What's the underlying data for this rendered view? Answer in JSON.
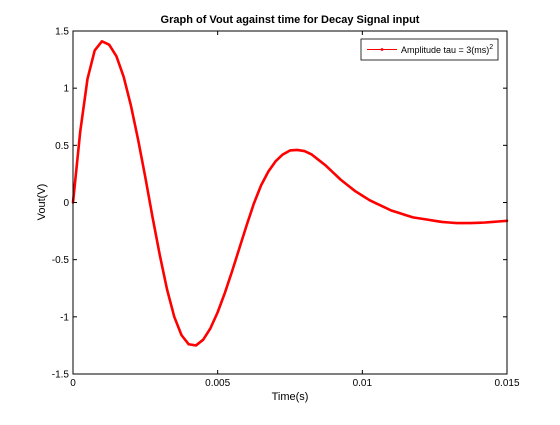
{
  "chart_data": {
    "type": "line",
    "title": "Graph of Vout against time for Decay Signal input",
    "xlabel": "Time(s)",
    "ylabel": "Vout(V)",
    "xlim": [
      0,
      0.015
    ],
    "ylim": [
      -1.5,
      1.5
    ],
    "xticks": [
      0,
      0.005,
      0.01,
      0.015
    ],
    "xtick_labels": [
      "0",
      "0.005",
      "0.01",
      "0.015"
    ],
    "yticks": [
      -1.5,
      -1,
      -0.5,
      0,
      0.5,
      1,
      1.5
    ],
    "ytick_labels": [
      "-1.5",
      "-1",
      "-0.5",
      "0",
      "0.5",
      "1",
      "1.5"
    ],
    "grid": false,
    "legend_position": "top-right",
    "series": [
      {
        "name": "Amplitude tau = 3(ms)",
        "name_base": "Amplitude tau = 3(ms)",
        "name_superscript": "2",
        "color": "#ff0000",
        "x": [
          0,
          0.00025,
          0.0005,
          0.00075,
          0.001,
          0.00125,
          0.0015,
          0.00175,
          0.002,
          0.00225,
          0.0025,
          0.00275,
          0.003,
          0.00325,
          0.0035,
          0.00375,
          0.004,
          0.00425,
          0.0045,
          0.00475,
          0.005,
          0.00525,
          0.0055,
          0.00575,
          0.006,
          0.00625,
          0.0065,
          0.00675,
          0.007,
          0.00725,
          0.0075,
          0.00775,
          0.008,
          0.00825,
          0.0085,
          0.00875,
          0.009,
          0.00925,
          0.0095,
          0.00975,
          0.01,
          0.01025,
          0.0105,
          0.01075,
          0.011,
          0.01125,
          0.0115,
          0.01175,
          0.012,
          0.01225,
          0.0125,
          0.01275,
          0.013,
          0.01325,
          0.0135,
          0.01375,
          0.014,
          0.01425,
          0.0145,
          0.01475,
          0.015
        ],
        "y": [
          0,
          0.62,
          1.08,
          1.33,
          1.41,
          1.38,
          1.28,
          1.1,
          0.85,
          0.55,
          0.22,
          -0.13,
          -0.46,
          -0.76,
          -1.0,
          -1.16,
          -1.24,
          -1.25,
          -1.2,
          -1.1,
          -0.96,
          -0.79,
          -0.6,
          -0.4,
          -0.2,
          -0.01,
          0.15,
          0.27,
          0.36,
          0.42,
          0.455,
          0.46,
          0.45,
          0.42,
          0.37,
          0.32,
          0.26,
          0.2,
          0.15,
          0.1,
          0.06,
          0.02,
          -0.01,
          -0.04,
          -0.07,
          -0.09,
          -0.11,
          -0.13,
          -0.14,
          -0.15,
          -0.16,
          -0.17,
          -0.175,
          -0.18,
          -0.18,
          -0.18,
          -0.178,
          -0.175,
          -0.17,
          -0.165,
          -0.16
        ]
      }
    ]
  }
}
